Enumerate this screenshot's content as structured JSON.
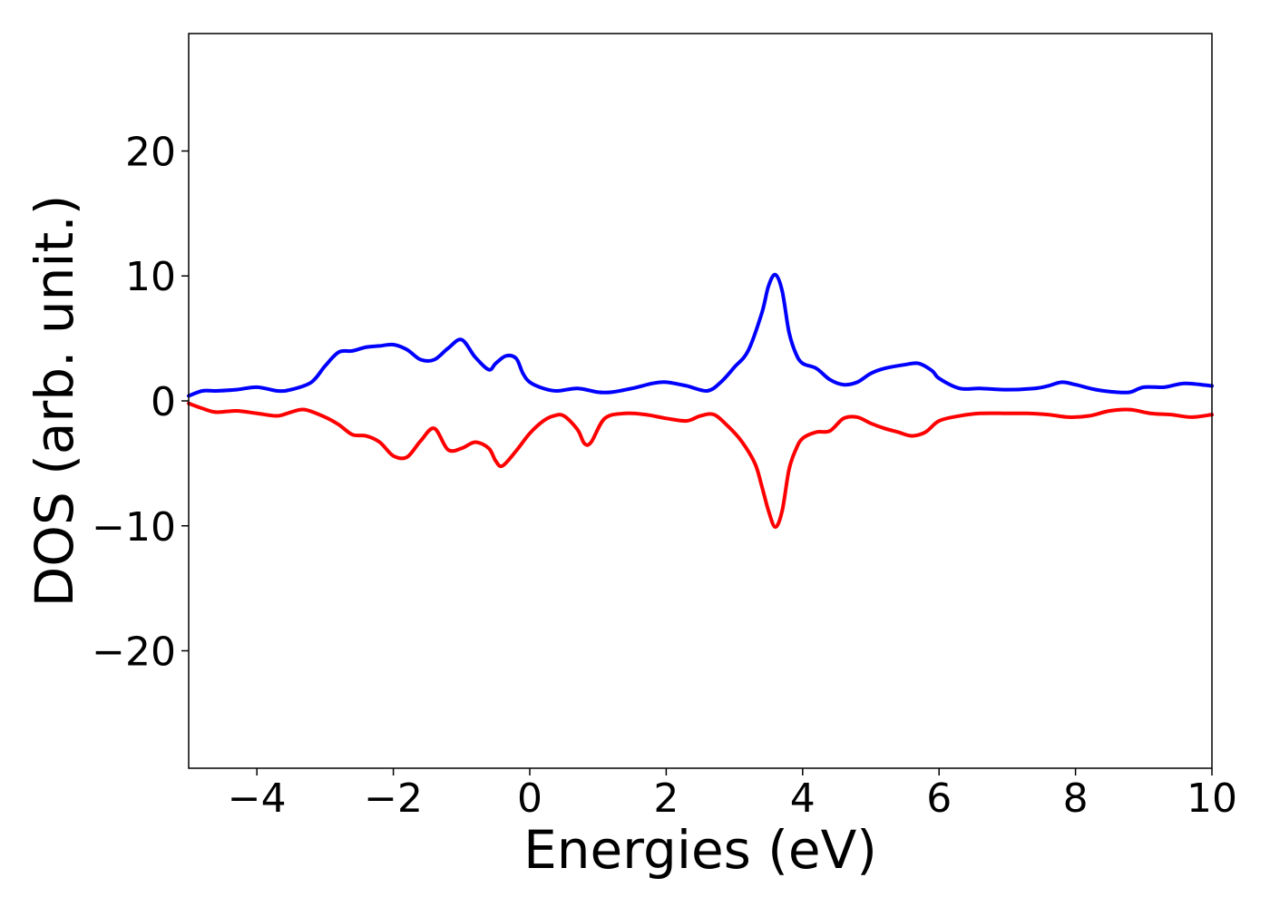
{
  "chart_data": {
    "type": "line",
    "title": "",
    "xlabel": "Energies (eV)",
    "ylabel": "DOS (arb. unit.)",
    "xlim": [
      -5,
      10
    ],
    "ylim": [
      -29.4,
      29.4
    ],
    "grid": false,
    "legend": "none",
    "x_ticks": [
      -4,
      -2,
      0,
      2,
      4,
      6,
      8,
      10
    ],
    "x_tick_labels": [
      "−4",
      "−2",
      "0",
      "2",
      "4",
      "6",
      "8",
      "10"
    ],
    "y_ticks": [
      -20,
      -10,
      0,
      10,
      20
    ],
    "y_tick_labels": [
      "−20",
      "−10",
      "0",
      "10",
      "20"
    ],
    "series": [
      {
        "color": "#0000ff",
        "x": [
          -5.0,
          -4.8,
          -4.6,
          -4.3,
          -4.0,
          -3.7,
          -3.5,
          -3.2,
          -3.0,
          -2.8,
          -2.6,
          -2.4,
          -2.2,
          -2.0,
          -1.8,
          -1.6,
          -1.4,
          -1.2,
          -1.0,
          -0.8,
          -0.6,
          -0.5,
          -0.35,
          -0.2,
          -0.1,
          0.0,
          0.2,
          0.4,
          0.7,
          1.0,
          1.2,
          1.5,
          1.8,
          2.0,
          2.3,
          2.6,
          2.8,
          3.0,
          3.2,
          3.4,
          3.5,
          3.6,
          3.7,
          3.8,
          3.9,
          4.0,
          4.2,
          4.4,
          4.6,
          4.8,
          5.0,
          5.2,
          5.5,
          5.7,
          5.9,
          6.0,
          6.3,
          6.6,
          7.0,
          7.4,
          7.6,
          7.8,
          8.0,
          8.3,
          8.6,
          8.8,
          9.0,
          9.3,
          9.6,
          10.0
        ],
        "y": [
          0.4,
          0.8,
          0.8,
          0.9,
          1.1,
          0.8,
          0.9,
          1.5,
          2.8,
          3.9,
          4.0,
          4.3,
          4.4,
          4.5,
          4.1,
          3.3,
          3.3,
          4.2,
          4.9,
          3.5,
          2.5,
          3.0,
          3.6,
          3.4,
          2.2,
          1.5,
          1.0,
          0.8,
          1.0,
          0.7,
          0.7,
          1.0,
          1.4,
          1.5,
          1.2,
          0.8,
          1.5,
          2.7,
          4.0,
          7.0,
          9.2,
          10.1,
          8.8,
          5.5,
          3.8,
          3.0,
          2.6,
          1.7,
          1.3,
          1.5,
          2.2,
          2.6,
          2.9,
          3.0,
          2.4,
          1.8,
          1.0,
          1.0,
          0.9,
          1.0,
          1.2,
          1.5,
          1.3,
          0.9,
          0.7,
          0.7,
          1.1,
          1.1,
          1.4,
          1.2
        ]
      },
      {
        "color": "#ff0000",
        "x": [
          -5.0,
          -4.8,
          -4.6,
          -4.3,
          -4.0,
          -3.7,
          -3.5,
          -3.3,
          -3.0,
          -2.8,
          -2.6,
          -2.4,
          -2.2,
          -2.0,
          -1.8,
          -1.6,
          -1.4,
          -1.2,
          -1.0,
          -0.8,
          -0.6,
          -0.5,
          -0.4,
          -0.2,
          0.0,
          0.2,
          0.35,
          0.5,
          0.7,
          0.8,
          0.9,
          1.1,
          1.4,
          1.7,
          2.0,
          2.3,
          2.5,
          2.7,
          2.9,
          3.1,
          3.3,
          3.4,
          3.5,
          3.6,
          3.7,
          3.8,
          3.9,
          4.0,
          4.2,
          4.4,
          4.6,
          4.8,
          5.0,
          5.2,
          5.4,
          5.6,
          5.8,
          6.0,
          6.3,
          6.6,
          7.0,
          7.3,
          7.6,
          7.9,
          8.2,
          8.5,
          8.8,
          9.1,
          9.4,
          9.7,
          10.0
        ],
        "y": [
          -0.2,
          -0.6,
          -0.9,
          -0.8,
          -1.0,
          -1.2,
          -0.9,
          -0.7,
          -1.3,
          -1.9,
          -2.7,
          -2.8,
          -3.3,
          -4.4,
          -4.5,
          -3.2,
          -2.2,
          -3.9,
          -3.8,
          -3.3,
          -3.8,
          -4.8,
          -5.2,
          -4.0,
          -2.6,
          -1.6,
          -1.2,
          -1.2,
          -2.3,
          -3.4,
          -3.3,
          -1.4,
          -1.0,
          -1.1,
          -1.4,
          -1.6,
          -1.2,
          -1.1,
          -2.0,
          -3.2,
          -5.0,
          -6.8,
          -8.8,
          -10.1,
          -8.8,
          -5.5,
          -3.9,
          -3.0,
          -2.5,
          -2.4,
          -1.4,
          -1.3,
          -1.8,
          -2.2,
          -2.5,
          -2.8,
          -2.5,
          -1.6,
          -1.2,
          -1.0,
          -1.0,
          -1.0,
          -1.1,
          -1.3,
          -1.2,
          -0.8,
          -0.7,
          -1.0,
          -1.1,
          -1.3,
          -1.1
        ]
      }
    ]
  }
}
